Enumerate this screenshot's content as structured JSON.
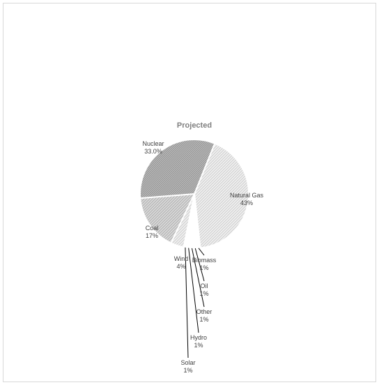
{
  "chart_data": {
    "type": "pie",
    "title": "Projected",
    "slices": [
      {
        "name": "Natural Gas",
        "value": 43,
        "label_value": "43%"
      },
      {
        "name": "Biomass",
        "value": 1,
        "label_value": "1%"
      },
      {
        "name": "Oil",
        "value": 1,
        "label_value": "1%"
      },
      {
        "name": "Other",
        "value": 1,
        "label_value": "1%"
      },
      {
        "name": "Hydro",
        "value": 1,
        "label_value": "1%"
      },
      {
        "name": "Solar",
        "value": 1,
        "label_value": "1%"
      },
      {
        "name": "Wind",
        "value": 4,
        "label_value": "4%"
      },
      {
        "name": "Coal",
        "value": 17,
        "label_value": "17%"
      },
      {
        "name": "Nuclear",
        "value": 33,
        "label_value": "33.0%"
      }
    ],
    "legend": "none"
  }
}
